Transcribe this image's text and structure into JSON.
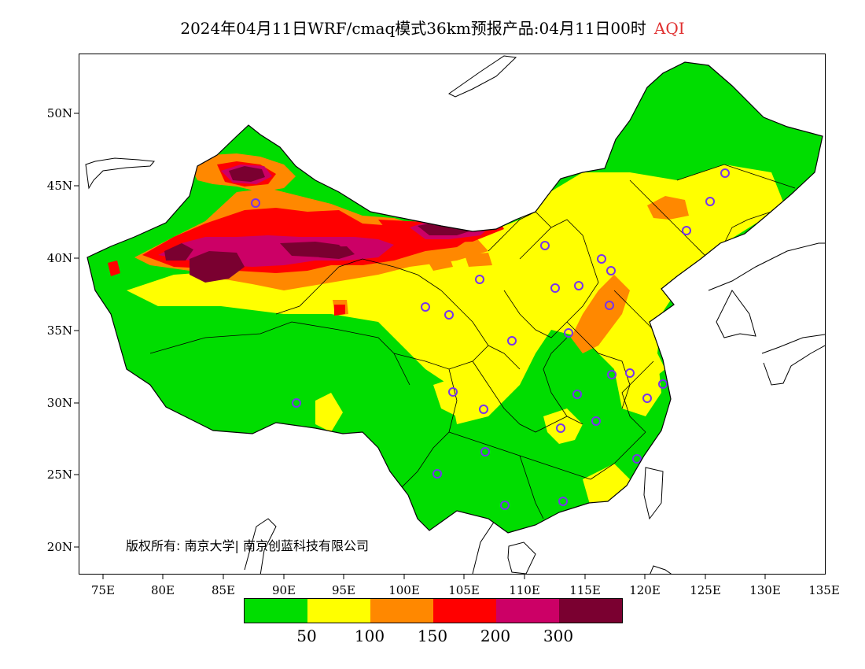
{
  "header": {
    "title": "2024年04月11日WRF/cmaq模式36km预报产品:04月11日00时",
    "variable": "AQI"
  },
  "axes": {
    "lat_labels": [
      "50N",
      "45N",
      "40N",
      "35N",
      "30N",
      "25N",
      "20N"
    ],
    "lon_labels": [
      "75E",
      "80E",
      "85E",
      "90E",
      "95E",
      "100E",
      "105E",
      "110E",
      "115E",
      "120E",
      "125E",
      "130E",
      "135E"
    ]
  },
  "copyright": "版权所有: 南京大学| 南京创蓝科技有限公司",
  "legend": {
    "colors": [
      "#00dd00",
      "#ffff00",
      "#ff8800",
      "#ff0000",
      "#cc0066",
      "#7a0030"
    ],
    "labels": [
      "50",
      "100",
      "150",
      "200",
      "300"
    ]
  }
}
